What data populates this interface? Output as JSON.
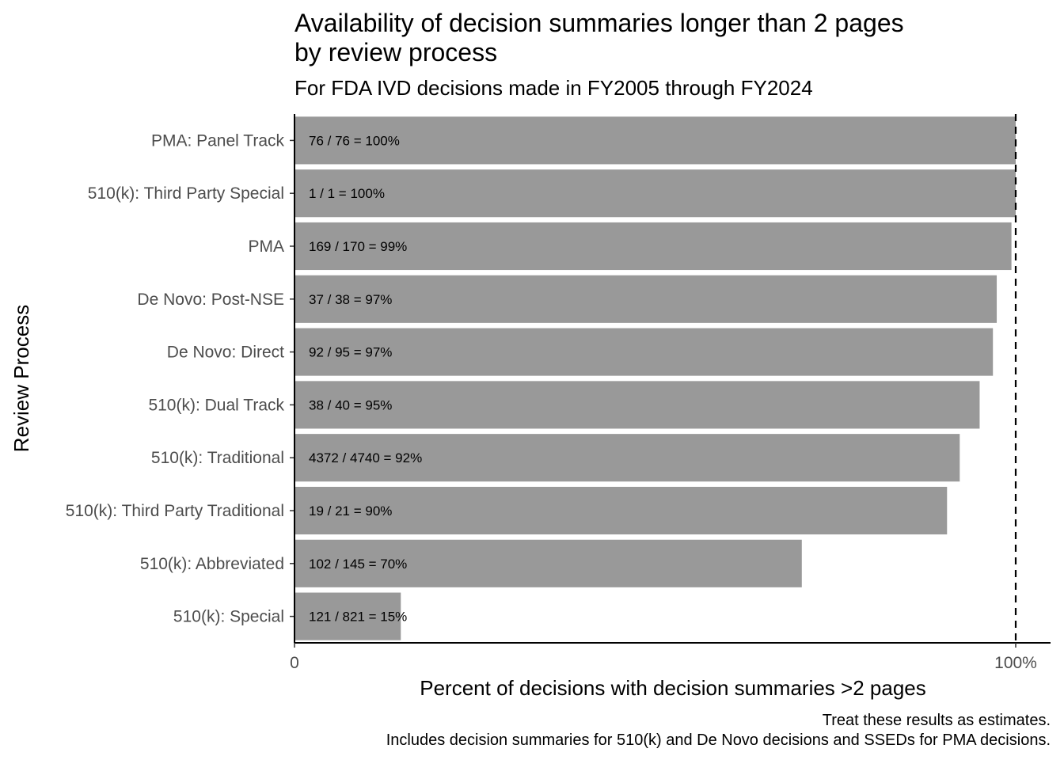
{
  "chart_data": {
    "type": "bar",
    "orientation": "horizontal",
    "title_lines": [
      "Availability of decision summaries longer than 2 pages",
      "by review process"
    ],
    "subtitle": "For FDA IVD decisions made in FY2005 through FY2024",
    "xlabel": "Percent of decisions with decision summaries >2 pages",
    "ylabel": "Review Process",
    "xlim": [
      0,
      1.0
    ],
    "x_ticks": [
      {
        "value": 0,
        "label": "0"
      },
      {
        "value": 1,
        "label": "100%"
      }
    ],
    "reference_line": {
      "value": 1,
      "style": "dashed"
    },
    "bar_color": "#999999",
    "grid": false,
    "categories": [
      "PMA: Panel Track",
      "510(k): Third Party Special",
      "PMA",
      "De Novo: Post-NSE",
      "De Novo: Direct",
      "510(k): Dual Track",
      "510(k): Traditional",
      "510(k): Third Party Traditional",
      "510(k): Abbreviated",
      "510(k): Special"
    ],
    "values": [
      1.0,
      1.0,
      0.9941,
      0.9737,
      0.9684,
      0.95,
      0.9224,
      0.9048,
      0.7034,
      0.1474
    ],
    "data_labels": [
      "76 / 76 = 100%",
      "1 / 1 = 100%",
      "169 / 170 = 99%",
      "37 / 38 = 97%",
      "92 / 95 = 97%",
      "38 / 40 = 95%",
      "4372 / 4740 = 92%",
      "19 / 21 = 90%",
      "102 / 145 = 70%",
      "121 / 821 = 15%"
    ],
    "caption_lines": [
      "Treat these results as estimates.",
      "Includes decision summaries for 510(k) and De Novo decisions and SSEDs for PMA decisions."
    ]
  }
}
